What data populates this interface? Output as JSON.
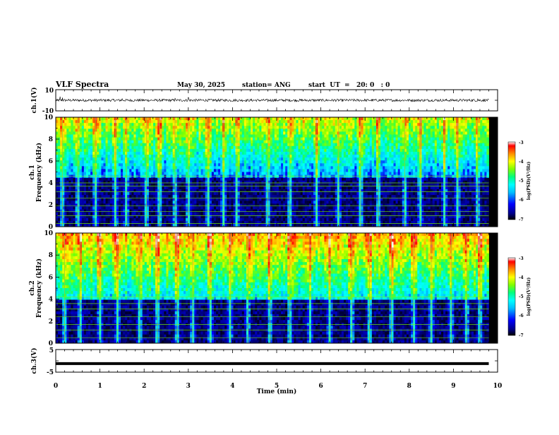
{
  "header": {
    "title": "VLF Spectra",
    "date": "May 30, 2025",
    "station": "station= ANG",
    "start": "start  UT  =   20: 0   : 0"
  },
  "chart_data": [
    {
      "type": "line",
      "name": "ch1-waveform",
      "ylabel": "ch.1(V)",
      "ylim": [
        -10,
        10
      ],
      "yticks": [
        "10",
        "-10"
      ],
      "x": [
        0,
        0.1,
        0.15,
        1.5,
        2.7,
        3.0,
        4.8,
        9.55,
        9.8
      ],
      "y": [
        0,
        3.5,
        2.5,
        1.5,
        1.8,
        2.6,
        -1.5,
        1.5,
        0
      ],
      "baseline": 0,
      "noise_amplitude": 1.2,
      "xlim": [
        0,
        9.8
      ]
    },
    {
      "type": "heatmap",
      "name": "ch1-spectrogram",
      "ylabel_line1": "ch.1",
      "ylabel_line2": "Frequency (kHz)",
      "ylim": [
        0,
        10
      ],
      "yticks": [
        "0",
        "2",
        "4",
        "6",
        "8",
        "10"
      ],
      "xlim": [
        0,
        9.8
      ],
      "colorbar": {
        "label": "log(PSD)(V²/Hz)",
        "range": [
          -7,
          -3
        ],
        "ticks": [
          "-3",
          "-4",
          "-5",
          "-6",
          "-7"
        ]
      },
      "high_band_min_khz": 4.5,
      "low_band_level": -6.9,
      "tone_lines_khz": [
        0.3,
        1.0,
        1.4,
        1.9,
        2.6,
        3.2,
        3.7,
        4.0,
        4.6
      ],
      "vertical_spikes_min": [
        0.15,
        0.5,
        0.9,
        1.35,
        1.6,
        2.05,
        2.35,
        2.7,
        3.0,
        3.45,
        3.8,
        4.1,
        4.8,
        5.3,
        5.9,
        6.4,
        6.9,
        7.3,
        7.9,
        8.25,
        8.8,
        9.1,
        9.55
      ]
    },
    {
      "type": "heatmap",
      "name": "ch2-spectrogram",
      "ylabel_line1": "ch.2",
      "ylabel_line2": "Frequency (kHz)",
      "ylim": [
        0,
        10
      ],
      "yticks": [
        "0",
        "2",
        "4",
        "6",
        "8",
        "10"
      ],
      "xlim": [
        0,
        9.8
      ],
      "colorbar": {
        "label": "log(PSD)(V²/Hz)",
        "range": [
          -7,
          -3
        ],
        "ticks": [
          "-3",
          "-4",
          "-5",
          "-6",
          "-7"
        ]
      },
      "high_band_min_khz": 4.0,
      "low_band_level": -6.9,
      "tone_lines_khz": [
        0.5,
        1.2,
        1.7,
        2.4,
        3.1,
        3.6,
        4.2
      ],
      "vertical_spikes_min": [
        0.2,
        0.55,
        1.0,
        1.4,
        1.9,
        2.3,
        2.75,
        3.1,
        3.5,
        3.95,
        4.35,
        4.85,
        5.3,
        5.75,
        6.2,
        6.7,
        7.1,
        7.6,
        8.1,
        8.5,
        8.95,
        9.3,
        9.6
      ]
    },
    {
      "type": "line",
      "name": "ch3-waveform",
      "ylabel": "ch.3(V)",
      "ylim": [
        -5,
        5
      ],
      "yticks": [
        "5",
        "-5"
      ],
      "x": [
        0,
        9.8
      ],
      "y": [
        -1.2,
        -1.2
      ],
      "xlabel": "Time (min)",
      "xlim": [
        0,
        10
      ],
      "xticks": [
        "0",
        "1",
        "2",
        "3",
        "4",
        "5",
        "6",
        "7",
        "8",
        "9",
        "10"
      ]
    }
  ],
  "colors": {
    "colormap": [
      "#000000",
      "#00008b",
      "#0000ff",
      "#00bfff",
      "#00ffff",
      "#00ff7f",
      "#7fff00",
      "#ffff00",
      "#ff8c00",
      "#ff0000",
      "#ffffff"
    ]
  }
}
